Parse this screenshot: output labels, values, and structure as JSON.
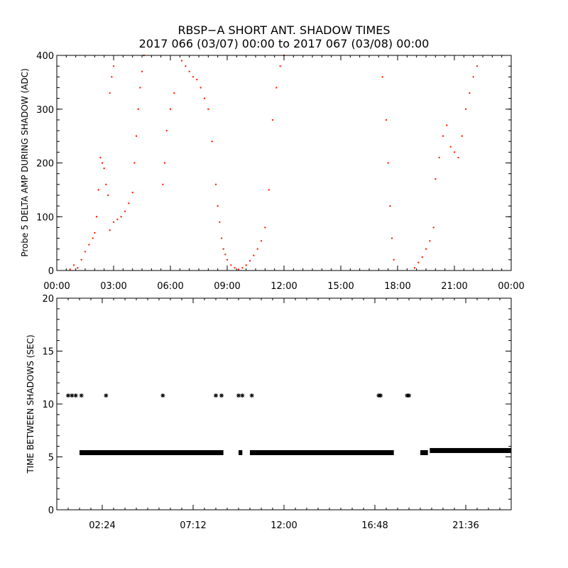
{
  "title": {
    "line1": "RBSP−A SHORT ANT. SHADOW TIMES",
    "line2": "2017 066 (03/07) 00:00 to 2017 067 (03/08) 00:00"
  },
  "colors": {
    "top_points": "#ff2200",
    "bottom_points": "#000000",
    "axes": "#000000"
  },
  "chart_data": [
    {
      "type": "scatter",
      "ylabel": "Probe 5 DELTA AMP DURING SHADOW (ADC)",
      "xlabel": "",
      "x_units": "hours since 00:00",
      "xlim": [
        0,
        24
      ],
      "ylim": [
        0,
        400
      ],
      "xtick_values": [
        0,
        3,
        6,
        9,
        12,
        15,
        18,
        21,
        24
      ],
      "xtick_labels": [
        "00:00",
        "03:00",
        "06:00",
        "09:00",
        "12:00",
        "15:00",
        "18:00",
        "21:00",
        "00:00"
      ],
      "ytick_values": [
        0,
        100,
        200,
        300,
        400
      ],
      "ytick_labels": [
        "0",
        "100",
        "200",
        "300",
        "400"
      ],
      "marker": "dot",
      "series": [
        {
          "values": [
            [
              0.7,
              2
            ],
            [
              0.9,
              10
            ],
            [
              1.1,
              5
            ],
            [
              1.3,
              20
            ],
            [
              1.5,
              35
            ],
            [
              1.7,
              48
            ],
            [
              1.9,
              60
            ],
            [
              2.0,
              70
            ],
            [
              2.1,
              100
            ],
            [
              2.2,
              150
            ],
            [
              2.3,
              210
            ],
            [
              2.4,
              200
            ],
            [
              2.5,
              190
            ],
            [
              2.6,
              160
            ],
            [
              2.7,
              140
            ],
            [
              2.8,
              330
            ],
            [
              2.9,
              360
            ],
            [
              3.0,
              380
            ],
            [
              2.8,
              75
            ],
            [
              3.0,
              90
            ],
            [
              3.2,
              95
            ],
            [
              3.4,
              100
            ],
            [
              3.6,
              110
            ],
            [
              3.8,
              125
            ],
            [
              4.0,
              145
            ],
            [
              4.1,
              200
            ],
            [
              4.2,
              250
            ],
            [
              4.3,
              300
            ],
            [
              4.4,
              340
            ],
            [
              4.5,
              370
            ],
            [
              4.6,
              400
            ],
            [
              5.6,
              160
            ],
            [
              5.7,
              200
            ],
            [
              5.8,
              260
            ],
            [
              6.0,
              300
            ],
            [
              6.2,
              330
            ],
            [
              6.6,
              390
            ],
            [
              6.8,
              380
            ],
            [
              7.0,
              370
            ],
            [
              7.2,
              360
            ],
            [
              7.4,
              355
            ],
            [
              7.6,
              340
            ],
            [
              7.8,
              320
            ],
            [
              8.0,
              300
            ],
            [
              8.2,
              240
            ],
            [
              8.4,
              160
            ],
            [
              8.5,
              120
            ],
            [
              8.6,
              90
            ],
            [
              8.7,
              60
            ],
            [
              8.8,
              40
            ],
            [
              8.9,
              30
            ],
            [
              9.0,
              20
            ],
            [
              9.2,
              10
            ],
            [
              9.4,
              5
            ],
            [
              9.6,
              2
            ],
            [
              9.8,
              5
            ],
            [
              10.0,
              10
            ],
            [
              10.2,
              18
            ],
            [
              10.4,
              28
            ],
            [
              10.6,
              40
            ],
            [
              10.8,
              55
            ],
            [
              11.0,
              80
            ],
            [
              11.2,
              150
            ],
            [
              11.4,
              280
            ],
            [
              11.6,
              340
            ],
            [
              11.8,
              380
            ],
            [
              12.0,
              400
            ],
            [
              17.2,
              360
            ],
            [
              17.4,
              280
            ],
            [
              17.5,
              200
            ],
            [
              17.6,
              120
            ],
            [
              17.7,
              60
            ],
            [
              17.8,
              20
            ],
            [
              18.9,
              5
            ],
            [
              19.1,
              15
            ],
            [
              19.3,
              25
            ],
            [
              19.5,
              40
            ],
            [
              19.7,
              55
            ],
            [
              19.9,
              80
            ],
            [
              20.0,
              170
            ],
            [
              20.2,
              210
            ],
            [
              20.4,
              250
            ],
            [
              20.6,
              270
            ],
            [
              20.8,
              230
            ],
            [
              21.0,
              220
            ],
            [
              21.2,
              210
            ],
            [
              21.4,
              250
            ],
            [
              21.6,
              300
            ],
            [
              21.8,
              330
            ],
            [
              22.0,
              360
            ],
            [
              22.2,
              380
            ]
          ]
        }
      ]
    },
    {
      "type": "scatter",
      "ylabel": "TIME BETWEEN SHADOWS (SEC)",
      "xlabel": "",
      "x_units": "hours since 00:00",
      "xlim": [
        0,
        24
      ],
      "ylim": [
        0,
        20
      ],
      "xtick_values": [
        2.4,
        7.2,
        12.0,
        16.8,
        21.6
      ],
      "xtick_labels": [
        "02:24",
        "07:12",
        "12:00",
        "16:48",
        "21:36"
      ],
      "ytick_values": [
        0,
        5,
        10,
        15,
        20
      ],
      "ytick_labels": [
        "0",
        "5",
        "10",
        "15",
        "20"
      ],
      "marker": "asterisk",
      "series": [
        {
          "values": [
            [
              0.6,
              10.8
            ],
            [
              0.8,
              10.8
            ],
            [
              1.0,
              10.8
            ],
            [
              1.3,
              10.8
            ],
            [
              2.6,
              10.8
            ],
            [
              5.6,
              10.8
            ],
            [
              8.4,
              10.8
            ],
            [
              8.7,
              10.8
            ],
            [
              9.6,
              10.8
            ],
            [
              9.8,
              10.8
            ],
            [
              10.3,
              10.8
            ],
            [
              17.0,
              10.8
            ],
            [
              17.1,
              10.8
            ],
            [
              18.5,
              10.8
            ],
            [
              18.6,
              10.8
            ]
          ]
        },
        {
          "segments": [
            [
              1.2,
              8.8,
              5.4
            ],
            [
              9.6,
              9.8,
              5.4
            ],
            [
              10.2,
              17.8,
              5.4
            ],
            [
              19.2,
              19.6,
              5.4
            ],
            [
              19.7,
              24.0,
              5.6
            ]
          ]
        }
      ]
    }
  ]
}
